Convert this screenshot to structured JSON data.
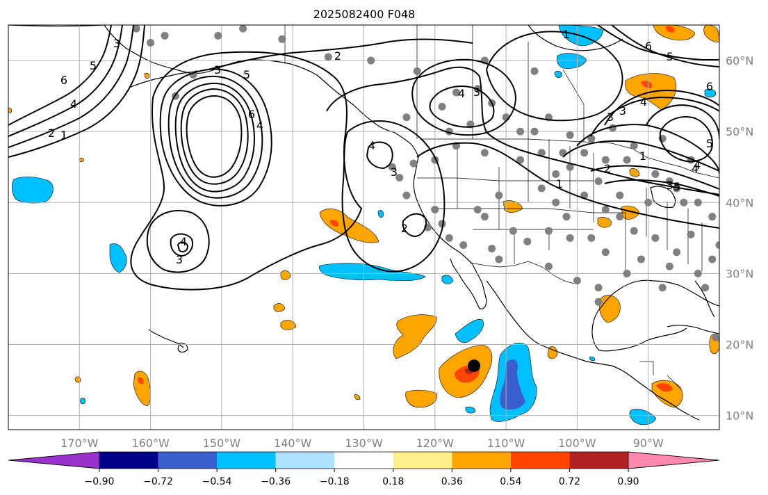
{
  "figure": {
    "title": "2025082400 F048"
  },
  "map": {
    "lon_range": [
      -180,
      -80
    ],
    "lat_range": [
      8,
      65
    ],
    "lon_ticks": [
      {
        "lon": -170,
        "label": "170°W"
      },
      {
        "lon": -160,
        "label": "160°W"
      },
      {
        "lon": -150,
        "label": "150°W"
      },
      {
        "lon": -140,
        "label": "140°W"
      },
      {
        "lon": -130,
        "label": "130°W"
      },
      {
        "lon": -120,
        "label": "120°W"
      },
      {
        "lon": -110,
        "label": "110°W"
      },
      {
        "lon": -100,
        "label": "100°W"
      },
      {
        "lon": -90,
        "label": "90°W"
      }
    ],
    "lat_ticks": [
      {
        "lat": 10,
        "label": "10°N"
      },
      {
        "lat": 20,
        "label": "20°N"
      },
      {
        "lat": 30,
        "label": "30°N"
      },
      {
        "lat": 40,
        "label": "40°N"
      },
      {
        "lat": 50,
        "label": "50°N"
      },
      {
        "lat": 60,
        "label": "60°N"
      }
    ],
    "gridlines": true,
    "storm_marker": {
      "lon": -114.5,
      "lat": 17.0
    },
    "station_points": [
      [
        -162,
        64.5
      ],
      [
        -158,
        63.5
      ],
      [
        -150.5,
        63.5
      ],
      [
        -147,
        64.5
      ],
      [
        -141.5,
        63
      ],
      [
        -156.5,
        55
      ],
      [
        -154,
        58
      ],
      [
        -160,
        62.5
      ],
      [
        -135,
        60.5
      ],
      [
        -129,
        60
      ],
      [
        -122.5,
        58.5
      ],
      [
        -113,
        60
      ],
      [
        -106,
        58.5
      ],
      [
        -117,
        55.5
      ],
      [
        -114,
        56
      ],
      [
        -119,
        53.5
      ],
      [
        -112,
        54
      ],
      [
        -124,
        52
      ],
      [
        -118,
        50
      ],
      [
        -115,
        51
      ],
      [
        -110,
        52
      ],
      [
        -106,
        50
      ],
      [
        -104,
        52
      ],
      [
        -101,
        49.5
      ],
      [
        -98,
        49
      ],
      [
        -95,
        50.5
      ],
      [
        -92,
        48
      ],
      [
        -88,
        49
      ],
      [
        -84,
        46
      ],
      [
        -86,
        42
      ],
      [
        -90,
        40
      ],
      [
        -94,
        41
      ],
      [
        -97,
        43
      ],
      [
        -101,
        45
      ],
      [
        -103,
        44
      ],
      [
        -108,
        46
      ],
      [
        -113,
        47
      ],
      [
        -117,
        48
      ],
      [
        -120,
        46
      ],
      [
        -123,
        45.5
      ],
      [
        -125,
        43.5
      ],
      [
        -126,
        45
      ],
      [
        -120,
        39
      ],
      [
        -119,
        37
      ],
      [
        -114,
        39
      ],
      [
        -113,
        38
      ],
      [
        -111,
        41
      ],
      [
        -105,
        42
      ],
      [
        -103,
        40
      ],
      [
        -101.5,
        38
      ],
      [
        -99,
        41
      ],
      [
        -96,
        39
      ],
      [
        -94,
        38
      ],
      [
        -92,
        36
      ],
      [
        -89,
        35
      ],
      [
        -86,
        33
      ],
      [
        -84,
        35.5
      ],
      [
        -87,
        31
      ],
      [
        -91,
        32
      ],
      [
        -93,
        30
      ],
      [
        -96,
        33
      ],
      [
        -98,
        35
      ],
      [
        -101,
        35
      ],
      [
        -104,
        36
      ],
      [
        -107,
        34.5
      ],
      [
        -109,
        36
      ],
      [
        -111,
        32
      ],
      [
        -112,
        33.5
      ],
      [
        -116,
        34
      ],
      [
        -118,
        35
      ],
      [
        -121,
        36.5
      ],
      [
        -124,
        41
      ],
      [
        -104,
        31
      ],
      [
        -100,
        29
      ],
      [
        -97,
        28
      ],
      [
        -97,
        26
      ],
      [
        -88,
        28
      ],
      [
        -82,
        28
      ],
      [
        -83,
        30
      ],
      [
        -81,
        32
      ],
      [
        -80,
        34
      ],
      [
        -81,
        38
      ],
      [
        -83,
        40
      ],
      [
        -85,
        40
      ],
      [
        -87,
        43
      ],
      [
        -89,
        44
      ],
      [
        -93,
        46
      ],
      [
        -96,
        46
      ],
      [
        -99,
        47
      ],
      [
        -102,
        47
      ],
      [
        -105,
        47
      ],
      [
        -108,
        50
      ],
      [
        -80.5,
        21
      ]
    ]
  },
  "colorbar": {
    "tick_labels": [
      "−0.90",
      "−0.72",
      "−0.54",
      "−0.36",
      "−0.18",
      "0.18",
      "0.36",
      "0.54",
      "0.72",
      "0.90"
    ],
    "colors": [
      "#9932cc",
      "#00008b",
      "#3a5fcd",
      "#00bfff",
      "#b0e2ff",
      "#ffffff",
      "#fff08c",
      "#ffa500",
      "#ff4500",
      "#b22222",
      "#ff88b0"
    ]
  },
  "contour_labels": [
    "6",
    "5",
    "4",
    "3",
    "2",
    "1",
    "2",
    "3",
    "5",
    "4",
    "6",
    "3",
    "4",
    "3",
    "2",
    "6",
    "5",
    "4",
    "1",
    "4",
    "3",
    "1",
    "3",
    "3",
    "4",
    "2",
    "1",
    "4",
    "5",
    "3",
    "6",
    "5",
    "4"
  ],
  "colors": {
    "land_line": "#000000",
    "grid": "#b0b0b0",
    "station": "#808080",
    "contour": "#000000"
  }
}
